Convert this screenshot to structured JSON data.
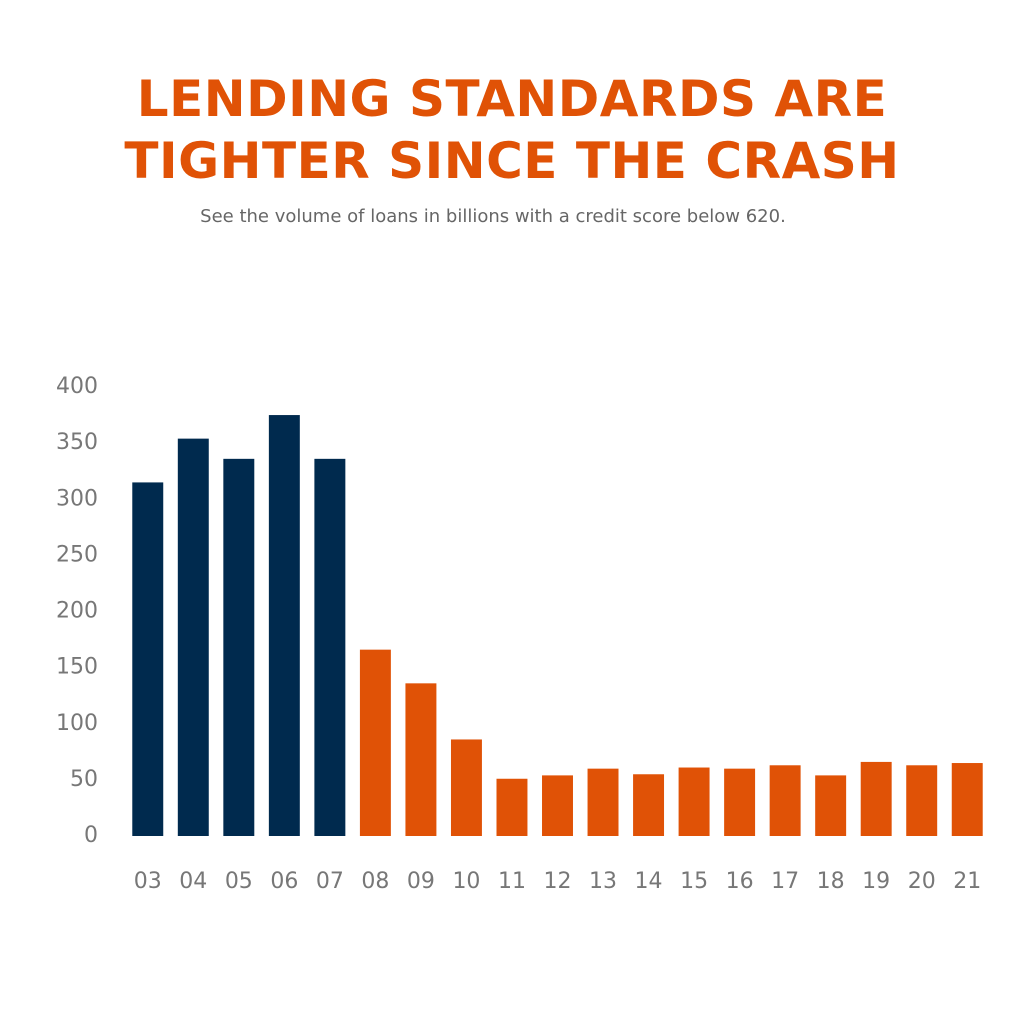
{
  "chart_data": {
    "type": "bar",
    "title": "LENDING STANDARDS ARE TIGHTER SINCE THE CRASH",
    "subtitle": "See the volume of loans in billions with a credit score below 620.",
    "categories": [
      "03",
      "04",
      "05",
      "06",
      "07",
      "08",
      "09",
      "10",
      "11",
      "12",
      "13",
      "14",
      "15",
      "16",
      "17",
      "18",
      "19",
      "20",
      "21"
    ],
    "values": [
      315,
      354,
      336,
      375,
      336,
      166,
      136,
      86,
      51,
      54,
      60,
      55,
      61,
      60,
      63,
      54,
      66,
      63,
      65
    ],
    "colors": [
      "#002a4e",
      "#002a4e",
      "#002a4e",
      "#002a4e",
      "#002a4e",
      "#e05206",
      "#e05206",
      "#e05206",
      "#e05206",
      "#e05206",
      "#e05206",
      "#e05206",
      "#e05206",
      "#e05206",
      "#e05206",
      "#e05206",
      "#e05206",
      "#e05206",
      "#e05206"
    ],
    "ylim": [
      0,
      400
    ],
    "yticks": [
      0,
      50,
      100,
      150,
      200,
      250,
      300,
      350,
      400
    ],
    "grid": false
  }
}
